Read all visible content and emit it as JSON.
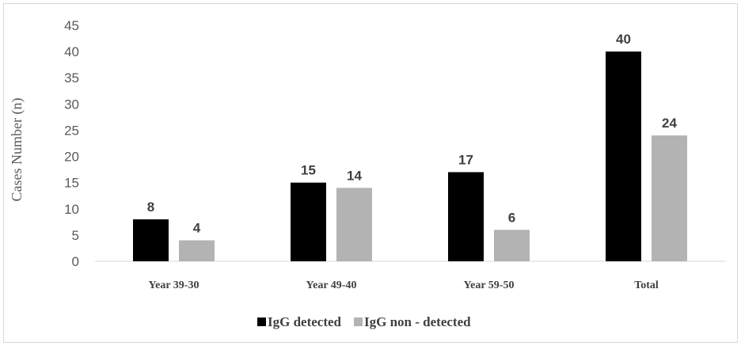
{
  "chart_data": {
    "type": "bar",
    "categories": [
      "Year 39-30",
      "Year 49-40",
      "Year 59-50",
      "Total"
    ],
    "series": [
      {
        "name": "IgG detected",
        "values": [
          8,
          15,
          17,
          40
        ],
        "color": "#000000"
      },
      {
        "name": "IgG non - detected",
        "values": [
          4,
          14,
          6,
          24
        ],
        "color": "#b3b3b3"
      }
    ],
    "title": "",
    "xlabel": "",
    "ylabel": "Cases Number (n)",
    "ylim": [
      0,
      45
    ],
    "yticks": [
      0,
      5,
      10,
      15,
      20,
      25,
      30,
      35,
      40,
      45
    ],
    "grid": false,
    "legend_position": "bottom"
  }
}
